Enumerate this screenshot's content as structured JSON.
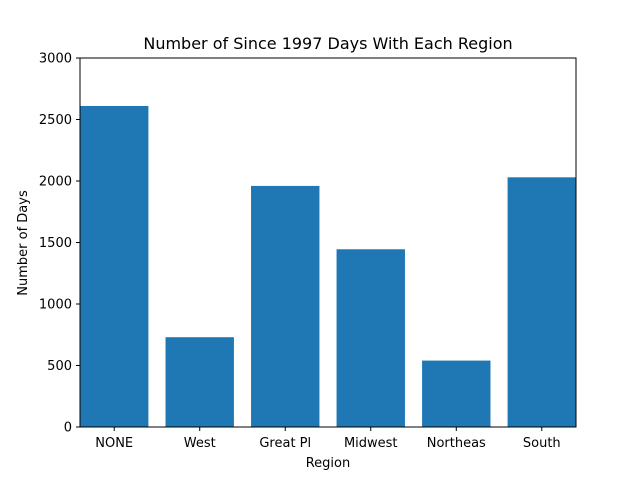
{
  "chart_data": {
    "type": "bar",
    "title": "Number of Since 1997 Days With Each Region",
    "xlabel": "Region",
    "ylabel": "Number of Days",
    "categories": [
      "NONE",
      "West",
      "Great Pl",
      "Midwest",
      "Northeas",
      "South"
    ],
    "values": [
      2610,
      730,
      1960,
      1445,
      540,
      2030
    ],
    "ylim": [
      0,
      3000
    ],
    "yticks": [
      0,
      500,
      1000,
      1500,
      2000,
      2500,
      3000
    ],
    "grid": false,
    "bar_color": "#1f77b4"
  }
}
